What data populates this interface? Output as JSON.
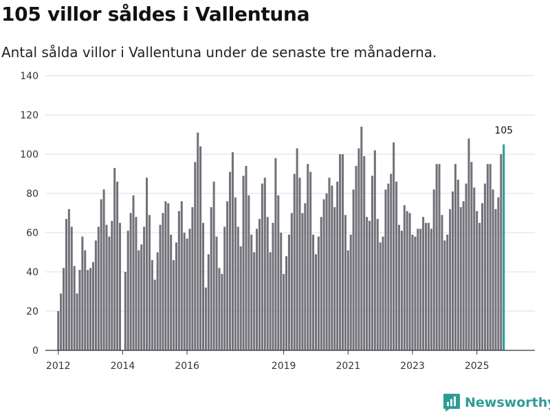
{
  "title": "105 villor såldes i Vallentuna",
  "subtitle": "Antal sålda villor i Vallentuna under de senaste tre månaderna.",
  "brand": {
    "name": "Newsworthy",
    "icon": "newsworthy-logo-icon",
    "color": "#2f9c94"
  },
  "colors": {
    "bar": "#727078",
    "highlight": "#2a9d93",
    "grid": "#dcdcdc",
    "axis": "#333333"
  },
  "chart_data": {
    "type": "bar",
    "title": "105 villor såldes i Vallentuna",
    "subtitle": "Antal sålda villor i Vallentuna under de senaste tre månaderna.",
    "xlabel": "",
    "ylabel": "",
    "x_start": 2012.0,
    "x_step": 0.08333,
    "xlim": [
      2011.6,
      2026.8
    ],
    "ylim": [
      0,
      140
    ],
    "yticks": [
      0,
      20,
      40,
      60,
      80,
      100,
      120,
      140
    ],
    "xticks": [
      2012,
      2014,
      2016,
      2019,
      2021,
      2023,
      2025
    ],
    "grid": true,
    "legend": "none",
    "highlight_last": true,
    "last_value_label": "105",
    "values": [
      20,
      29,
      42,
      67,
      72,
      63,
      43,
      29,
      41,
      58,
      51,
      41,
      42,
      45,
      56,
      63,
      77,
      82,
      64,
      58,
      66,
      93,
      86,
      65,
      0,
      40,
      61,
      70,
      79,
      68,
      51,
      54,
      63,
      88,
      69,
      46,
      36,
      50,
      64,
      70,
      76,
      75,
      59,
      46,
      55,
      71,
      76,
      60,
      57,
      62,
      73,
      96,
      111,
      104,
      65,
      32,
      49,
      73,
      86,
      58,
      42,
      39,
      63,
      76,
      91,
      101,
      78,
      63,
      53,
      89,
      94,
      79,
      59,
      50,
      62,
      67,
      85,
      88,
      68,
      50,
      65,
      98,
      79,
      60,
      39,
      48,
      59,
      70,
      90,
      103,
      88,
      70,
      75,
      95,
      91,
      59,
      49,
      58,
      68,
      77,
      80,
      88,
      84,
      73,
      86,
      100,
      100,
      69,
      51,
      59,
      82,
      94,
      103,
      114,
      99,
      68,
      66,
      89,
      102,
      67,
      55,
      58,
      82,
      85,
      90,
      106,
      86,
      64,
      61,
      74,
      71,
      70,
      59,
      58,
      62,
      62,
      68,
      65,
      65,
      62,
      82,
      95,
      95,
      69,
      56,
      59,
      72,
      81,
      95,
      87,
      73,
      76,
      85,
      108,
      96,
      83,
      71,
      65,
      75,
      85,
      95,
      95,
      82,
      72,
      78,
      100,
      105
    ]
  }
}
